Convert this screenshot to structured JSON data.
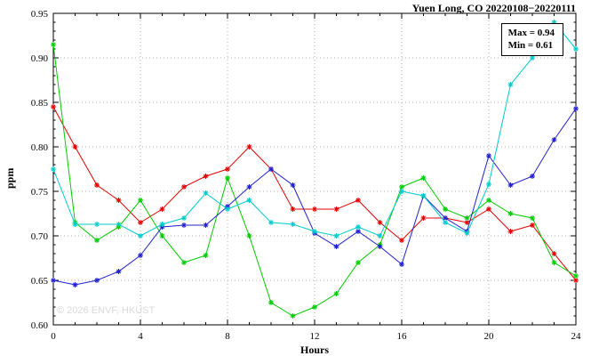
{
  "title": "Yuen Long, CO 20220108−20220111",
  "watermark": "© 2026 ENVF, HKUST",
  "legend": {
    "max_label": "Max = 0.94",
    "min_label": "Min = 0.61"
  },
  "chart_data": {
    "type": "line",
    "title": "Yuen Long, CO 20220108−20220111",
    "xlabel": "Hours",
    "ylabel": "ppm",
    "xlim": [
      0,
      24
    ],
    "ylim": [
      0.6,
      0.95
    ],
    "xticks": [
      0,
      4,
      8,
      12,
      16,
      20,
      24
    ],
    "ytick_step": 0.05,
    "grid": true,
    "legend_position": "top-right",
    "annotations": [
      "Max = 0.94",
      "Min = 0.61"
    ],
    "max": 0.94,
    "min": 0.61,
    "x": [
      0,
      1,
      2,
      3,
      4,
      5,
      6,
      7,
      8,
      9,
      10,
      11,
      12,
      13,
      14,
      15,
      16,
      17,
      18,
      19,
      20,
      21,
      22,
      23,
      24
    ],
    "series": [
      {
        "name": "red",
        "color": "#e60000",
        "values": [
          0.845,
          0.8,
          0.757,
          0.74,
          0.715,
          0.73,
          0.755,
          0.767,
          0.775,
          0.8,
          0.775,
          0.73,
          0.73,
          0.73,
          0.74,
          0.715,
          0.695,
          0.72,
          0.72,
          0.715,
          0.73,
          0.705,
          0.712,
          0.68,
          0.65
        ]
      },
      {
        "name": "green",
        "color": "#00cc00",
        "values": [
          0.915,
          0.715,
          0.695,
          0.71,
          0.74,
          0.7,
          0.67,
          0.678,
          0.765,
          0.7,
          0.625,
          0.61,
          0.62,
          0.635,
          0.67,
          0.69,
          0.755,
          0.765,
          0.73,
          0.72,
          0.74,
          0.725,
          0.72,
          0.67,
          0.655
        ]
      },
      {
        "name": "blue",
        "color": "#2020cc",
        "values": [
          0.65,
          0.645,
          0.65,
          0.66,
          0.678,
          0.71,
          0.712,
          0.712,
          0.733,
          0.755,
          0.775,
          0.757,
          0.703,
          0.688,
          0.705,
          0.688,
          0.668,
          0.745,
          0.72,
          0.705,
          0.79,
          0.757,
          0.767,
          0.808,
          0.843
        ]
      },
      {
        "name": "cyan",
        "color": "#00cccc",
        "values": [
          0.775,
          0.713,
          0.713,
          0.713,
          0.7,
          0.713,
          0.72,
          0.748,
          0.73,
          0.74,
          0.715,
          0.713,
          0.705,
          0.7,
          0.71,
          0.7,
          0.75,
          0.745,
          0.715,
          0.703,
          0.758,
          0.87,
          0.9,
          0.94,
          0.91
        ]
      }
    ]
  }
}
